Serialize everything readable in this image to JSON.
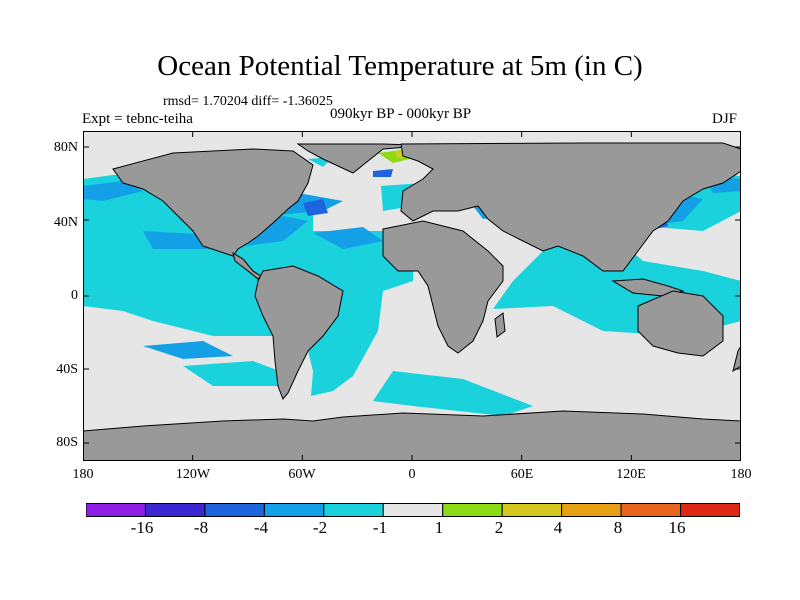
{
  "title": "Ocean Potential Temperature at 5m (in C)",
  "stats": "rmsd= 1.70204 diff= -1.36025",
  "experiment": "Expt = tebnc-teiha",
  "period": "090kyr BP - 000kyr BP",
  "season": "DJF",
  "map": {
    "projection": "cylindrical-equidistant",
    "lon_range": [
      -180,
      180
    ],
    "lat_range": [
      -88,
      88
    ],
    "land_color": "#999999",
    "colors": {
      "lt_-16": "#8c1ee6",
      "-16_-8": "#3c28d2",
      "-8_-4": "#1e64dc",
      "-4_-2": "#14a0e6",
      "-2_-1": "#19d2dc",
      "-1_1": "#e6e6e6",
      "1_2": "#8cdc14",
      "2_4": "#d2c81e",
      "4_8": "#e6a014",
      "8_16": "#e6641e",
      "gt_16": "#dc2814"
    }
  },
  "y_ticks": [
    "80N",
    "40N",
    "0",
    "40S",
    "80S"
  ],
  "x_ticks": [
    "180",
    "120W",
    "60W",
    "0",
    "60E",
    "120E",
    "180"
  ],
  "colorbar": {
    "colors": [
      "#8c1ee6",
      "#3c28d2",
      "#1e64dc",
      "#14a0e6",
      "#19d2dc",
      "#e6e6e6",
      "#8cdc14",
      "#d2c81e",
      "#e6a014",
      "#e6641e",
      "#dc2814"
    ],
    "labels": [
      "-16",
      "-8",
      "-4",
      "-2",
      "-1",
      "1",
      "2",
      "4",
      "8",
      "16"
    ]
  }
}
